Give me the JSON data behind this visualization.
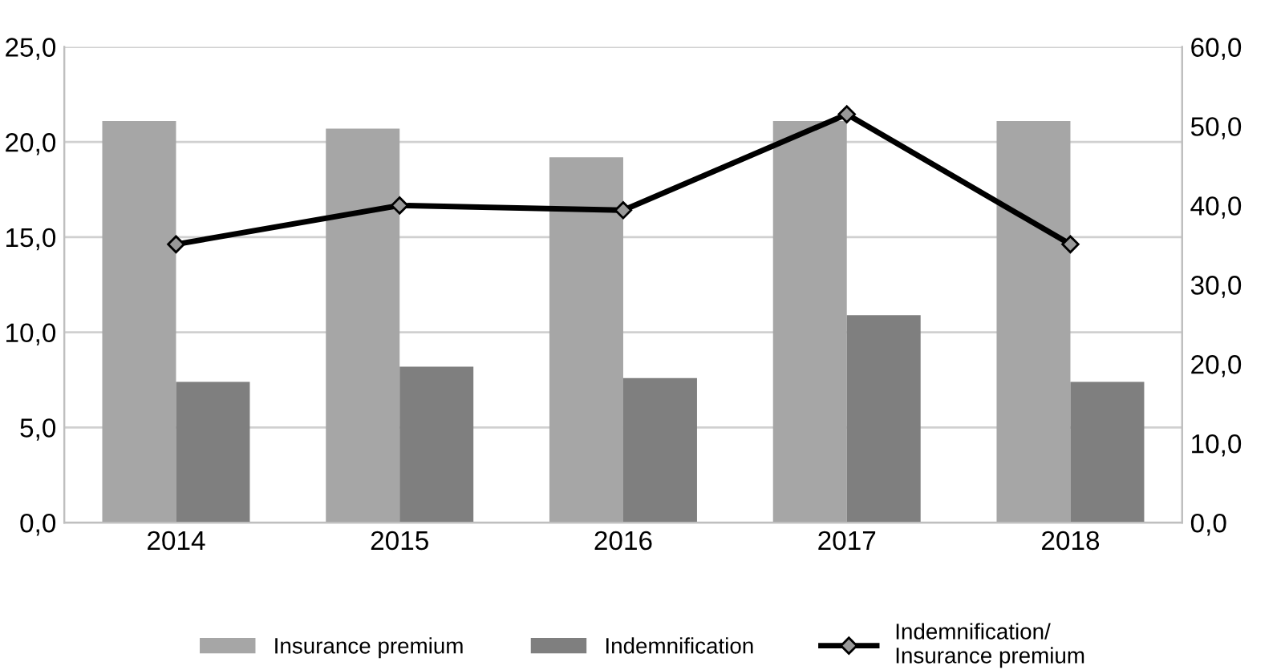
{
  "chart_data": {
    "type": "bar",
    "categories": [
      "2014",
      "2015",
      "2016",
      "2017",
      "2018"
    ],
    "series": [
      {
        "name": "Insurance premium",
        "color": "#a6a6a6",
        "values": [
          21.1,
          20.7,
          19.2,
          21.1,
          21.1
        ]
      },
      {
        "name": "Indemnification",
        "color": "#7f7f7f",
        "values": [
          7.4,
          8.2,
          7.6,
          10.9,
          7.4
        ]
      },
      {
        "name": "Indemnification/\nInsurance premium",
        "type": "line",
        "axis": "y2",
        "color": "#000000",
        "marker": "diamond",
        "line_style": "solid",
        "values": [
          35.1,
          40.0,
          39.4,
          51.5,
          35.1
        ]
      }
    ],
    "ylim": [
      0,
      25
    ],
    "yticks": [
      {
        "value": 0,
        "label": "0,0"
      },
      {
        "value": 5,
        "label": "5,0"
      },
      {
        "value": 10,
        "label": "10,0"
      },
      {
        "value": 15,
        "label": "15,0"
      },
      {
        "value": 20,
        "label": "20,0"
      },
      {
        "value": 25,
        "label": "25,0"
      }
    ],
    "y2lim": [
      0,
      60
    ],
    "y2ticks": [
      {
        "value": 0,
        "label": "0,0"
      },
      {
        "value": 10,
        "label": "10,0"
      },
      {
        "value": 20,
        "label": "20,0"
      },
      {
        "value": 30,
        "label": "30,0"
      },
      {
        "value": 40,
        "label": "40,0"
      },
      {
        "value": 50,
        "label": "50,0"
      },
      {
        "value": 60,
        "label": "60,0"
      }
    ],
    "grid": "y",
    "legend": "bottom"
  }
}
